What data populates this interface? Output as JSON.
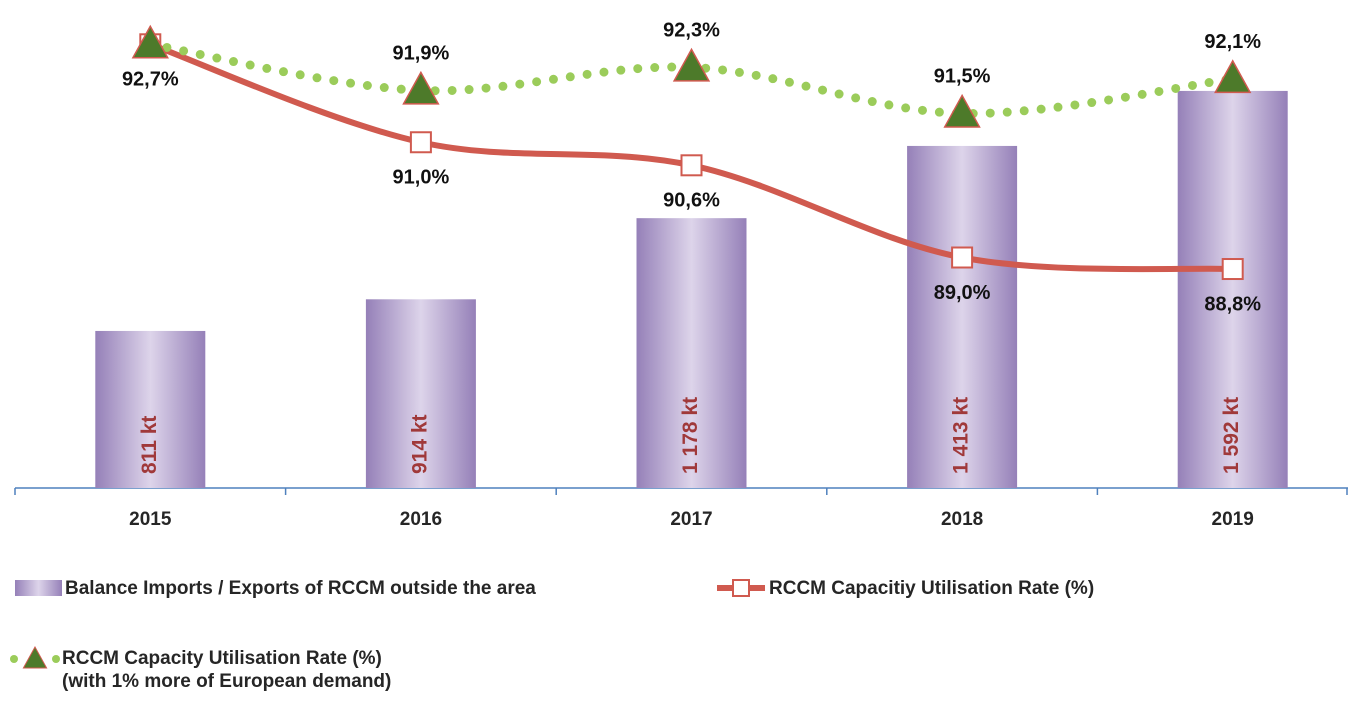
{
  "chart_data": {
    "type": "bar",
    "categories": [
      "2015",
      "2016",
      "2017",
      "2018",
      "2019"
    ],
    "ylim": [
      300,
      1800
    ],
    "y2lim": [
      85,
      93
    ],
    "series": [
      {
        "name": "Balance Imports / Exports of RCCM outside the area",
        "type": "bar",
        "color": "#9b87bd",
        "values": [
          811,
          914,
          1178,
          1413,
          1592
        ],
        "value_labels": [
          "811 kt",
          "914 kt",
          "1 178 kt",
          "1 413 kt",
          "1 592 kt"
        ]
      },
      {
        "name": "RCCM Capacitiy Utilisation Rate (%)",
        "type": "line",
        "axis": "y2",
        "color": "#d05a4f",
        "values": [
          92.7,
          91.0,
          90.6,
          89.0,
          88.8
        ],
        "value_labels": [
          "92,7%",
          "91,0%",
          "90,6%",
          "89,0%",
          "88,8%"
        ]
      },
      {
        "name": "RCCM Capacity Utilisation Rate (%)\n(with 1% more of European demand)",
        "type": "dotted",
        "axis": "y2",
        "color": "#9bcc5a",
        "marker_color": "#4d7a2a",
        "values": [
          92.7,
          91.9,
          92.3,
          91.5,
          92.1
        ],
        "value_labels": [
          null,
          "91,9%",
          "92,3%",
          "91,5%",
          "92,1%"
        ]
      }
    ]
  }
}
